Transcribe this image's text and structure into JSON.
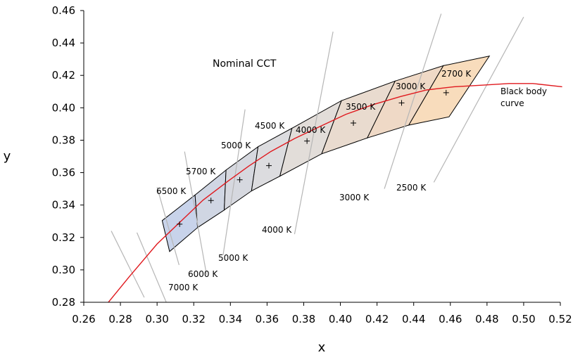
{
  "chart_data": {
    "type": "line",
    "title": "Nominal CCT",
    "xlabel": "x",
    "ylabel": "y",
    "xlim": [
      0.26,
      0.52
    ],
    "ylim": [
      0.28,
      0.46
    ],
    "x_ticks": [
      "0.26",
      "0.28",
      "0.30",
      "0.32",
      "0.34",
      "0.36",
      "0.38",
      "0.40",
      "0.42",
      "0.44",
      "0.46",
      "0.48",
      "0.50",
      "0.52"
    ],
    "y_ticks": [
      "0.28",
      "0.30",
      "0.32",
      "0.34",
      "0.36",
      "0.38",
      "0.40",
      "0.42",
      "0.44",
      "0.46"
    ],
    "grid": false,
    "curve_label": [
      "Black body",
      "curve"
    ],
    "curve_color": "#e0191e",
    "blackbody_curve": [
      [
        0.272,
        0.278
      ],
      [
        0.285,
        0.296
      ],
      [
        0.3,
        0.316
      ],
      [
        0.313,
        0.33
      ],
      [
        0.325,
        0.343
      ],
      [
        0.339,
        0.355
      ],
      [
        0.35,
        0.364
      ],
      [
        0.362,
        0.373
      ],
      [
        0.375,
        0.381
      ],
      [
        0.388,
        0.388
      ],
      [
        0.403,
        0.396
      ],
      [
        0.418,
        0.402
      ],
      [
        0.433,
        0.407
      ],
      [
        0.447,
        0.411
      ],
      [
        0.462,
        0.413
      ],
      [
        0.478,
        0.414
      ],
      [
        0.492,
        0.415
      ],
      [
        0.505,
        0.415
      ],
      [
        0.521,
        0.413
      ]
    ],
    "quadrangles": [
      {
        "name": "6500 K",
        "fill": "#c8d3ea",
        "points": [
          [
            0.3028,
            0.3304
          ],
          [
            0.3207,
            0.3462
          ],
          [
            0.3221,
            0.3261
          ],
          [
            0.3068,
            0.3113
          ]
        ]
      },
      {
        "name": "5700 K",
        "fill": "#d0d6e3",
        "points": [
          [
            0.3207,
            0.3462
          ],
          [
            0.3376,
            0.3616
          ],
          [
            0.3366,
            0.3369
          ],
          [
            0.3221,
            0.3261
          ]
        ]
      },
      {
        "name": "5000 K",
        "fill": "#d6d8df",
        "points": [
          [
            0.3376,
            0.3616
          ],
          [
            0.3551,
            0.376
          ],
          [
            0.3515,
            0.3487
          ],
          [
            0.3366,
            0.3369
          ]
        ]
      },
      {
        "name": "4500 K",
        "fill": "#dcdcdf",
        "points": [
          [
            0.3551,
            0.376
          ],
          [
            0.3736,
            0.3874
          ],
          [
            0.367,
            0.3578
          ],
          [
            0.3515,
            0.3487
          ]
        ]
      },
      {
        "name": "4000 K",
        "fill": "#e2ddd9",
        "points": [
          [
            0.3736,
            0.3874
          ],
          [
            0.4006,
            0.4044
          ],
          [
            0.3898,
            0.3716
          ],
          [
            0.367,
            0.3578
          ]
        ]
      },
      {
        "name": "3500 K",
        "fill": "#e9dbcf",
        "points": [
          [
            0.4006,
            0.4044
          ],
          [
            0.4299,
            0.4165
          ],
          [
            0.4147,
            0.3814
          ],
          [
            0.3898,
            0.3716
          ]
        ]
      },
      {
        "name": "3000 K",
        "fill": "#efd9c6",
        "points": [
          [
            0.4299,
            0.4165
          ],
          [
            0.4562,
            0.426
          ],
          [
            0.4373,
            0.3893
          ],
          [
            0.4147,
            0.3814
          ]
        ]
      },
      {
        "name": "2700 K",
        "fill": "#f8dcbc",
        "points": [
          [
            0.4562,
            0.426
          ],
          [
            0.4813,
            0.4319
          ],
          [
            0.4593,
            0.3944
          ],
          [
            0.4373,
            0.3893
          ]
        ]
      }
    ],
    "center_points": [
      [
        0.3123,
        0.3282
      ],
      [
        0.3294,
        0.3428
      ],
      [
        0.3451,
        0.3556
      ],
      [
        0.361,
        0.3643
      ],
      [
        0.3818,
        0.3795
      ],
      [
        0.4071,
        0.3906
      ],
      [
        0.4334,
        0.403
      ],
      [
        0.4577,
        0.4093
      ]
    ],
    "quad_labels": [
      "6500 K",
      "5700 K",
      "5000 K",
      "4500 K",
      "4000 K",
      "3500 K",
      "3000 K",
      "2700 K"
    ],
    "isotemp_line_color": "#b6b6b6",
    "isotemp_lines": [
      {
        "label": "7000 K",
        "from": [
          0.289,
          0.323
        ],
        "to": [
          0.305,
          0.28
        ]
      },
      {
        "label": "",
        "from": [
          0.275,
          0.324
        ],
        "to": [
          0.293,
          0.283
        ]
      },
      {
        "label": "6000 K",
        "from": [
          0.315,
          0.373
        ],
        "to": [
          0.327,
          0.297
        ]
      },
      {
        "label": "",
        "from": [
          0.3,
          0.351
        ],
        "to": [
          0.312,
          0.303
        ]
      },
      {
        "label": "5000 K",
        "from": [
          0.348,
          0.399
        ],
        "to": [
          0.336,
          0.309
        ]
      },
      {
        "label": "4000 K",
        "from": [
          0.396,
          0.447
        ],
        "to": [
          0.375,
          0.322
        ]
      },
      {
        "label": "3000 K",
        "from": [
          0.455,
          0.458
        ],
        "to": [
          0.424,
          0.35
        ]
      },
      {
        "label": "2500 K",
        "from": [
          0.5,
          0.456
        ],
        "to": [
          0.451,
          0.354
        ]
      }
    ]
  }
}
